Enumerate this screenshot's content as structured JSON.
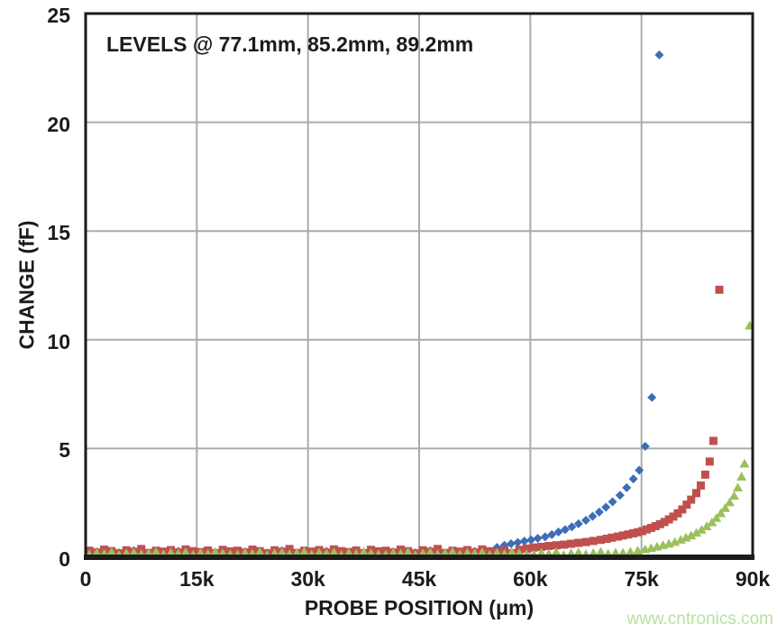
{
  "page": {
    "watermark": "www.cntronics.com",
    "watermark_color": "#b7e2a0",
    "background": "#ffffff",
    "text_color": "#1b1b1b"
  },
  "chart_data": {
    "type": "scatter",
    "annotation": "LEVELS @ 77.1mm, 85.2mm, 89.2mm",
    "xlabel": "PROBE POSITION (μm)",
    "ylabel": "CHANGE (fF)",
    "xlim": [
      0,
      90000
    ],
    "ylim": [
      0,
      25
    ],
    "grid": true,
    "gridline_color": "#ababab",
    "border_color": "#1b1b1b",
    "legend": "none",
    "xticks": [
      {
        "v": 0,
        "label": "0"
      },
      {
        "v": 15000,
        "label": "15k"
      },
      {
        "v": 30000,
        "label": "30k"
      },
      {
        "v": 45000,
        "label": "45k"
      },
      {
        "v": 60000,
        "label": "60k"
      },
      {
        "v": 75000,
        "label": "75k"
      },
      {
        "v": 90000,
        "label": "90k"
      }
    ],
    "yticks": [
      {
        "v": 0,
        "label": "0"
      },
      {
        "v": 5,
        "label": "5"
      },
      {
        "v": 10,
        "label": "10"
      },
      {
        "v": 15,
        "label": "15"
      },
      {
        "v": 20,
        "label": "20"
      },
      {
        "v": 25,
        "label": "25"
      }
    ],
    "series": [
      {
        "name": "LEVEL 77.1mm",
        "marker": "diamond",
        "color": "#3d6eb7",
        "points": [
          [
            500,
            0.18
          ],
          [
            1500,
            0.25
          ],
          [
            2500,
            0.12
          ],
          [
            3500,
            0.28
          ],
          [
            4500,
            0.2
          ],
          [
            5500,
            0.15
          ],
          [
            6500,
            0.3
          ],
          [
            7500,
            0.22
          ],
          [
            8500,
            0.16
          ],
          [
            9500,
            0.26
          ],
          [
            10500,
            0.21
          ],
          [
            11500,
            0.13
          ],
          [
            12500,
            0.27
          ],
          [
            13500,
            0.19
          ],
          [
            14500,
            0.24
          ],
          [
            15500,
            0.14
          ],
          [
            16500,
            0.29
          ],
          [
            17500,
            0.23
          ],
          [
            18500,
            0.17
          ],
          [
            19500,
            0.25
          ],
          [
            20500,
            0.18
          ],
          [
            21500,
            0.25
          ],
          [
            22500,
            0.12
          ],
          [
            23500,
            0.28
          ],
          [
            24500,
            0.2
          ],
          [
            25500,
            0.15
          ],
          [
            26500,
            0.3
          ],
          [
            27500,
            0.22
          ],
          [
            28500,
            0.16
          ],
          [
            29500,
            0.26
          ],
          [
            30500,
            0.21
          ],
          [
            31500,
            0.13
          ],
          [
            32500,
            0.27
          ],
          [
            33500,
            0.19
          ],
          [
            34500,
            0.24
          ],
          [
            35500,
            0.14
          ],
          [
            36500,
            0.29
          ],
          [
            37500,
            0.23
          ],
          [
            38500,
            0.17
          ],
          [
            39500,
            0.25
          ],
          [
            40500,
            0.18
          ],
          [
            41500,
            0.25
          ],
          [
            42500,
            0.12
          ],
          [
            43500,
            0.28
          ],
          [
            44500,
            0.2
          ],
          [
            45500,
            0.15
          ],
          [
            46500,
            0.3
          ],
          [
            47500,
            0.22
          ],
          [
            48500,
            0.16
          ],
          [
            49500,
            0.26
          ],
          [
            50500,
            0.21
          ],
          [
            51500,
            0.13
          ],
          [
            52500,
            0.27
          ],
          [
            53500,
            0.19
          ],
          [
            54500,
            0.24
          ],
          [
            55500,
            0.45
          ],
          [
            56500,
            0.55
          ],
          [
            57400,
            0.62
          ],
          [
            58300,
            0.68
          ],
          [
            59200,
            0.74
          ],
          [
            60100,
            0.8
          ],
          [
            61000,
            0.87
          ],
          [
            62000,
            0.94
          ],
          [
            62900,
            1.04
          ],
          [
            63800,
            1.16
          ],
          [
            64700,
            1.27
          ],
          [
            65600,
            1.4
          ],
          [
            66500,
            1.54
          ],
          [
            67500,
            1.7
          ],
          [
            68400,
            1.88
          ],
          [
            69300,
            2.08
          ],
          [
            70200,
            2.3
          ],
          [
            71100,
            2.55
          ],
          [
            72100,
            2.85
          ],
          [
            73000,
            3.2
          ],
          [
            73900,
            3.6
          ],
          [
            74700,
            4.0
          ],
          [
            75500,
            5.1
          ],
          [
            76400,
            7.35
          ],
          [
            77400,
            23.1
          ]
        ]
      },
      {
        "name": "LEVEL 85.2mm",
        "marker": "square",
        "color": "#c0504d",
        "points": [
          [
            500,
            0.3
          ],
          [
            1500,
            0.22
          ],
          [
            2500,
            0.35
          ],
          [
            3500,
            0.28
          ],
          [
            4500,
            0.18
          ],
          [
            5500,
            0.32
          ],
          [
            6500,
            0.25
          ],
          [
            7500,
            0.38
          ],
          [
            8500,
            0.2
          ],
          [
            9500,
            0.3
          ],
          [
            10500,
            0.26
          ],
          [
            11500,
            0.33
          ],
          [
            12500,
            0.22
          ],
          [
            13500,
            0.36
          ],
          [
            14500,
            0.28
          ],
          [
            15500,
            0.24
          ],
          [
            16500,
            0.31
          ],
          [
            17500,
            0.19
          ],
          [
            18500,
            0.34
          ],
          [
            19500,
            0.27
          ],
          [
            20500,
            0.3
          ],
          [
            21500,
            0.22
          ],
          [
            22500,
            0.35
          ],
          [
            23500,
            0.28
          ],
          [
            24500,
            0.18
          ],
          [
            25500,
            0.32
          ],
          [
            26500,
            0.25
          ],
          [
            27500,
            0.38
          ],
          [
            28500,
            0.2
          ],
          [
            29500,
            0.3
          ],
          [
            30500,
            0.26
          ],
          [
            31500,
            0.33
          ],
          [
            32500,
            0.22
          ],
          [
            33500,
            0.36
          ],
          [
            34500,
            0.28
          ],
          [
            35500,
            0.24
          ],
          [
            36500,
            0.31
          ],
          [
            37500,
            0.19
          ],
          [
            38500,
            0.34
          ],
          [
            39500,
            0.27
          ],
          [
            40500,
            0.3
          ],
          [
            41500,
            0.22
          ],
          [
            42500,
            0.35
          ],
          [
            43500,
            0.28
          ],
          [
            44500,
            0.18
          ],
          [
            45500,
            0.32
          ],
          [
            46500,
            0.25
          ],
          [
            47500,
            0.38
          ],
          [
            48500,
            0.2
          ],
          [
            49500,
            0.3
          ],
          [
            50500,
            0.26
          ],
          [
            51500,
            0.33
          ],
          [
            52500,
            0.22
          ],
          [
            53500,
            0.36
          ],
          [
            54500,
            0.28
          ],
          [
            55500,
            0.24
          ],
          [
            56500,
            0.31
          ],
          [
            57500,
            0.19
          ],
          [
            58500,
            0.34
          ],
          [
            59500,
            0.4
          ],
          [
            60500,
            0.45
          ],
          [
            61500,
            0.48
          ],
          [
            62500,
            0.52
          ],
          [
            63500,
            0.55
          ],
          [
            64500,
            0.58
          ],
          [
            65500,
            0.62
          ],
          [
            66500,
            0.66
          ],
          [
            67500,
            0.7
          ],
          [
            68500,
            0.75
          ],
          [
            69500,
            0.8
          ],
          [
            70300,
            0.85
          ],
          [
            71000,
            0.9
          ],
          [
            71800,
            0.95
          ],
          [
            72500,
            1.0
          ],
          [
            73200,
            1.05
          ],
          [
            73900,
            1.1
          ],
          [
            74500,
            1.15
          ],
          [
            75100,
            1.2
          ],
          [
            75700,
            1.28
          ],
          [
            76300,
            1.35
          ],
          [
            76900,
            1.43
          ],
          [
            77500,
            1.52
          ],
          [
            78100,
            1.62
          ],
          [
            78700,
            1.74
          ],
          [
            79300,
            1.87
          ],
          [
            79900,
            2.02
          ],
          [
            80500,
            2.2
          ],
          [
            81100,
            2.42
          ],
          [
            81700,
            2.65
          ],
          [
            82400,
            2.95
          ],
          [
            83000,
            3.3
          ],
          [
            83600,
            3.8
          ],
          [
            84200,
            4.4
          ],
          [
            84700,
            5.35
          ],
          [
            85500,
            12.3
          ]
        ]
      },
      {
        "name": "LEVEL 89.2mm",
        "marker": "triangle",
        "color": "#9cbf5d",
        "points": [
          [
            500,
            0.12
          ],
          [
            1500,
            0.2
          ],
          [
            2500,
            0.16
          ],
          [
            3500,
            0.24
          ],
          [
            4500,
            0.1
          ],
          [
            5500,
            0.18
          ],
          [
            6500,
            0.22
          ],
          [
            7500,
            0.14
          ],
          [
            8500,
            0.19
          ],
          [
            9500,
            0.25
          ],
          [
            10500,
            0.13
          ],
          [
            11500,
            0.21
          ],
          [
            12500,
            0.17
          ],
          [
            13500,
            0.23
          ],
          [
            14500,
            0.11
          ],
          [
            15500,
            0.2
          ],
          [
            16500,
            0.15
          ],
          [
            17500,
            0.24
          ],
          [
            18500,
            0.18
          ],
          [
            19500,
            0.13
          ],
          [
            20500,
            0.12
          ],
          [
            21500,
            0.2
          ],
          [
            22500,
            0.16
          ],
          [
            23500,
            0.24
          ],
          [
            24500,
            0.1
          ],
          [
            25500,
            0.18
          ],
          [
            26500,
            0.22
          ],
          [
            27500,
            0.14
          ],
          [
            28500,
            0.19
          ],
          [
            29500,
            0.25
          ],
          [
            30500,
            0.13
          ],
          [
            31500,
            0.21
          ],
          [
            32500,
            0.17
          ],
          [
            33500,
            0.23
          ],
          [
            34500,
            0.11
          ],
          [
            35500,
            0.2
          ],
          [
            36500,
            0.15
          ],
          [
            37500,
            0.24
          ],
          [
            38500,
            0.18
          ],
          [
            39500,
            0.13
          ],
          [
            40500,
            0.12
          ],
          [
            41500,
            0.2
          ],
          [
            42500,
            0.16
          ],
          [
            43500,
            0.24
          ],
          [
            44500,
            0.1
          ],
          [
            45500,
            0.18
          ],
          [
            46500,
            0.22
          ],
          [
            47500,
            0.14
          ],
          [
            48500,
            0.19
          ],
          [
            49500,
            0.25
          ],
          [
            50500,
            0.13
          ],
          [
            51500,
            0.21
          ],
          [
            52500,
            0.17
          ],
          [
            53500,
            0.23
          ],
          [
            54500,
            0.11
          ],
          [
            55500,
            0.2
          ],
          [
            56500,
            0.15
          ],
          [
            57500,
            0.24
          ],
          [
            58500,
            0.18
          ],
          [
            59500,
            0.13
          ],
          [
            60500,
            0.12
          ],
          [
            61500,
            0.2
          ],
          [
            62500,
            0.16
          ],
          [
            63500,
            0.24
          ],
          [
            64500,
            0.1
          ],
          [
            65500,
            0.18
          ],
          [
            66500,
            0.22
          ],
          [
            67500,
            0.14
          ],
          [
            68500,
            0.19
          ],
          [
            69500,
            0.25
          ],
          [
            70500,
            0.16
          ],
          [
            71500,
            0.21
          ],
          [
            72500,
            0.2
          ],
          [
            73500,
            0.25
          ],
          [
            74500,
            0.3
          ],
          [
            75500,
            0.36
          ],
          [
            76300,
            0.42
          ],
          [
            77100,
            0.48
          ],
          [
            77900,
            0.55
          ],
          [
            78700,
            0.62
          ],
          [
            79500,
            0.7
          ],
          [
            80300,
            0.8
          ],
          [
            81000,
            0.9
          ],
          [
            81700,
            1.0
          ],
          [
            82400,
            1.12
          ],
          [
            83100,
            1.26
          ],
          [
            83800,
            1.42
          ],
          [
            84500,
            1.6
          ],
          [
            85100,
            1.8
          ],
          [
            85700,
            2.02
          ],
          [
            86300,
            2.26
          ],
          [
            86900,
            2.52
          ],
          [
            87500,
            2.82
          ],
          [
            88000,
            3.2
          ],
          [
            88500,
            3.7
          ],
          [
            88900,
            4.3
          ],
          [
            89600,
            10.65
          ]
        ]
      }
    ]
  }
}
